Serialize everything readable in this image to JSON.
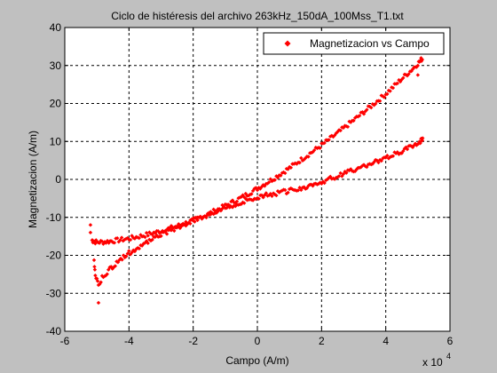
{
  "chart_data": {
    "type": "scatter",
    "title": "Ciclo de histéresis del archivo 263kHz_150dA_100Mss_T1.txt",
    "xlabel": "Campo (A/m)",
    "ylabel": "Magnetizacion (A/m)",
    "x_multiplier": "x 10",
    "x_multiplier_exp": "4",
    "xlim": [
      -6,
      6
    ],
    "ylim": [
      -40,
      40
    ],
    "x_ticks": [
      "-6",
      "-4",
      "-2",
      "0",
      "2",
      "4",
      "6"
    ],
    "y_ticks": [
      "-40",
      "-30",
      "-20",
      "-10",
      "0",
      "10",
      "20",
      "30",
      "40"
    ],
    "x_tick_values": [
      -6,
      -4,
      -2,
      0,
      2,
      4,
      6
    ],
    "y_tick_values": [
      -40,
      -30,
      -20,
      -10,
      0,
      10,
      20,
      30,
      40
    ],
    "grid": true,
    "legend_position": "top-right",
    "series": [
      {
        "name": "Magnetizacion vs Campo",
        "color": "#ff0000",
        "marker": "diamond",
        "branches": [
          {
            "x": [
              -5.15,
              -5.1,
              -5.0,
              -4.8,
              -4.5,
              -4.0,
              -3.5,
              -3.0,
              -2.5,
              -2.0,
              -1.5,
              -1.0,
              -0.5,
              0.0,
              0.5,
              1.0,
              1.5,
              2.0,
              2.5,
              3.0,
              3.5,
              4.0,
              4.5,
              4.8,
              5.0,
              5.1,
              5.15
            ],
            "y": [
              -16.0,
              -16.3,
              -16.5,
              -16.5,
              -16.2,
              -15.6,
              -14.7,
              -13.6,
              -12.3,
              -10.8,
              -9.0,
              -7.0,
              -4.8,
              -2.4,
              0.2,
              3.0,
              6.0,
              9.0,
              12.2,
              15.6,
              19.0,
              22.5,
              26.5,
              28.8,
              30.5,
              31.5,
              32.0
            ]
          },
          {
            "x": [
              5.15,
              5.1,
              5.0,
              4.8,
              4.5,
              4.0,
              3.5,
              3.0,
              2.5,
              2.0,
              1.5,
              1.0,
              0.5,
              0.0,
              -0.5,
              -1.0,
              -1.5,
              -2.0,
              -2.5,
              -3.0,
              -3.5,
              -4.0,
              -4.3,
              -4.6,
              -4.8,
              -4.95,
              -5.05,
              -5.1
            ],
            "y": [
              11.0,
              10.3,
              9.5,
              8.6,
              7.4,
              5.6,
              4.0,
              2.5,
              0.9,
              -0.7,
              -1.9,
              -3.0,
              -3.8,
              -4.6,
              -6.0,
              -7.6,
              -9.3,
              -10.8,
              -12.6,
              -14.6,
              -16.8,
              -19.4,
              -21.4,
              -23.6,
              -25.5,
              -27.5,
              -25.0,
              -20.0
            ]
          }
        ],
        "outliers": {
          "x": [
            5.0,
            -4.95,
            -5.2,
            -5.2
          ],
          "y": [
            27.5,
            -32.5,
            -12.0,
            -14.0
          ]
        }
      }
    ]
  }
}
